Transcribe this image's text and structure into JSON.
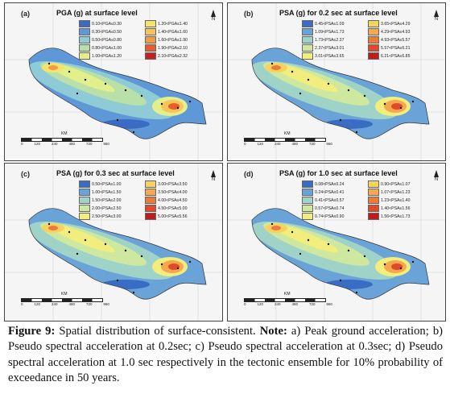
{
  "panels": [
    {
      "id": "a",
      "letter": "(a)",
      "title": "PGA (g) at surface level",
      "legend": [
        {
          "label": "0.10<PGA≤0.30",
          "color": "#3b6cc4"
        },
        {
          "label": "1.20<PGA≤1.40",
          "color": "#f6e36c"
        },
        {
          "label": "0.30<PGA≤0.50",
          "color": "#5f98d6"
        },
        {
          "label": "1.40<PGA≤1.60",
          "color": "#f7c45c"
        },
        {
          "label": "0.50<PGA≤0.80",
          "color": "#8fcbd6"
        },
        {
          "label": "1.60<PGA≤1.90",
          "color": "#f39a45"
        },
        {
          "label": "0.80<PGA≤1.00",
          "color": "#b9e0a8"
        },
        {
          "label": "1.90<PGA≤2.10",
          "color": "#ea5c2f"
        },
        {
          "label": "1.00<PGA≤1.20",
          "color": "#e3ef8a"
        },
        {
          "label": "2.10<PGA≤2.32",
          "color": "#c9201f"
        }
      ]
    },
    {
      "id": "b",
      "letter": "(b)",
      "title": "PSA (g) for 0.2 sec at surface level",
      "legend": [
        {
          "label": "0.45<PSA≤1.09",
          "color": "#3b6cc4"
        },
        {
          "label": "3.65<PSA≤4.29",
          "color": "#f7d260"
        },
        {
          "label": "1.09<PSA≤1.73",
          "color": "#6aa3d8"
        },
        {
          "label": "4.29<PSA≤4.93",
          "color": "#f5a84d"
        },
        {
          "label": "1.73<PSA≤2.37",
          "color": "#9fd3c8"
        },
        {
          "label": "4.93<PSA≤5.57",
          "color": "#ee7a3a"
        },
        {
          "label": "2.37<PSA≤3.01",
          "color": "#cfe8a0"
        },
        {
          "label": "5.57<PSA≤6.21",
          "color": "#e04a2a"
        },
        {
          "label": "3.01<PSA≤3.65",
          "color": "#f1ee7d"
        },
        {
          "label": "6.21<PSA≤6.85",
          "color": "#c11c1c"
        }
      ]
    },
    {
      "id": "c",
      "letter": "(c)",
      "title": "PSA (g) for 0.3 sec at surface level",
      "legend": [
        {
          "label": "0.50<PSA≤1.00",
          "color": "#3b6cc4"
        },
        {
          "label": "3.00<PSA≤3.50",
          "color": "#f7d260"
        },
        {
          "label": "1.00<PSA≤1.50",
          "color": "#6aa3d8"
        },
        {
          "label": "3.50<PSA≤4.00",
          "color": "#f5a84d"
        },
        {
          "label": "1.50<PSA≤2.00",
          "color": "#9fd3c8"
        },
        {
          "label": "4.00<PSA≤4.50",
          "color": "#ee7a3a"
        },
        {
          "label": "2.00<PSA≤2.50",
          "color": "#cfe8a0"
        },
        {
          "label": "4.50<PSA≤5.00",
          "color": "#e04a2a"
        },
        {
          "label": "2.50<PSA≤3.00",
          "color": "#f1ee7d"
        },
        {
          "label": "5.00<PSA≤5.56",
          "color": "#c11c1c"
        }
      ]
    },
    {
      "id": "d",
      "letter": "(d)",
      "title": "PSA (g) for 1.0 sec at surface level",
      "legend": [
        {
          "label": "0.08<PSA≤0.24",
          "color": "#3b6cc4"
        },
        {
          "label": "0.90<PSA≤1.07",
          "color": "#f7d260"
        },
        {
          "label": "0.24<PSA≤0.41",
          "color": "#6aa3d8"
        },
        {
          "label": "1.07<PSA≤1.23",
          "color": "#f5a84d"
        },
        {
          "label": "0.41<PSA≤0.57",
          "color": "#9fd3c8"
        },
        {
          "label": "1.23<PSA≤1.40",
          "color": "#ee7a3a"
        },
        {
          "label": "0.57<PSA≤0.74",
          "color": "#cfe8a0"
        },
        {
          "label": "1.40<PSA≤1.56",
          "color": "#e04a2a"
        },
        {
          "label": "0.74<PSA≤0.90",
          "color": "#f1ee7d"
        },
        {
          "label": "1.56<PSA≤1.73",
          "color": "#c11c1c"
        }
      ]
    }
  ],
  "map_common": {
    "north_label": "N",
    "scale_unit": "KM",
    "scale_ticks": [
      "0",
      "120",
      "240",
      "480",
      "720",
      "960"
    ],
    "top_lon_labels": [
      "75°0'0\"E",
      "80°0'0\"E",
      "85°0'0\"E",
      "90°0'0\"E",
      "95°0'0\"E"
    ],
    "bottom_lon_labels": [
      "75°0'0\"E",
      "80°0'0\"E",
      "85°0'0\"E",
      "90°0'0\"E",
      "95°0'0\"E"
    ],
    "left_lat_labels": [
      "30°0'0\"N",
      "25°0'0\"N"
    ],
    "right_lat_labels": [
      "30°0'0\"N",
      "25°0'0\"N",
      "20°0'0\"N"
    ]
  },
  "caption": {
    "label": "Figure 9:",
    "text1": " Spatial distribution of surface-consistent. ",
    "note_label": "Note:",
    "text2": " a) Peak ground acceleration; b) Pseudo spectral acceleration at 0.2sec; c) Pseudo spectral acceleration at 0.3sec; d) Pseudo spectral acceleration at 1.0 sec respectively in the tectonic ensemble for 10% probability of exceedance in 50 years."
  }
}
